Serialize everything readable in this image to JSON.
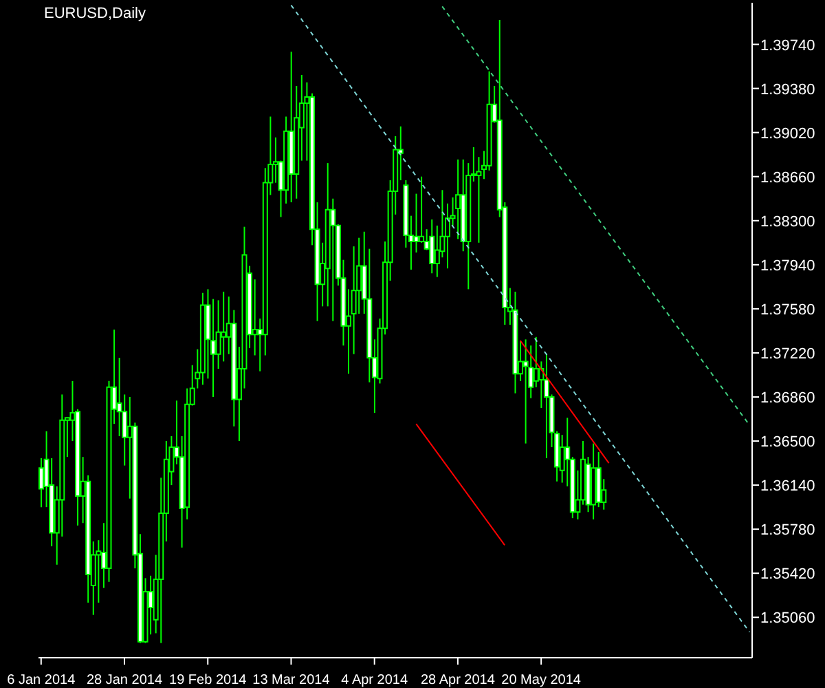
{
  "chart_data": {
    "type": "candlestick",
    "title": "EURUSD,Daily",
    "color": "#00ff00",
    "grid": false,
    "categories": [
      "6 Jan 2014",
      null,
      null,
      null,
      null,
      null,
      null,
      null,
      null,
      null,
      null,
      null,
      null,
      null,
      null,
      null,
      "28 Jan 2014",
      null,
      null,
      null,
      null,
      null,
      null,
      null,
      null,
      null,
      null,
      null,
      null,
      null,
      null,
      null,
      "19 Feb 2014",
      null,
      null,
      null,
      null,
      null,
      null,
      null,
      null,
      null,
      null,
      null,
      null,
      null,
      null,
      null,
      "13 Mar 2014",
      null,
      null,
      null,
      null,
      null,
      null,
      null,
      null,
      null,
      null,
      null,
      null,
      null,
      null,
      null,
      "4 Apr 2014",
      null,
      null,
      null,
      null,
      null,
      null,
      null,
      null,
      null,
      null,
      null,
      null,
      null,
      null,
      null,
      "28 Apr 2014",
      null,
      null,
      null,
      null,
      null,
      null,
      null,
      null,
      null,
      null,
      null,
      null,
      null,
      null,
      null,
      "20 May 2014",
      null,
      null,
      null,
      null,
      null,
      null,
      null,
      null,
      null,
      null,
      null,
      null,
      null,
      null,
      null,
      null,
      null,
      null,
      null,
      null,
      null,
      null,
      null,
      null,
      null,
      null,
      null,
      null,
      null,
      null,
      null,
      null,
      null,
      null,
      null,
      null,
      null,
      null,
      null,
      null
    ],
    "ohlc": [
      [
        1.3628,
        1.3636,
        1.3596,
        1.3611
      ],
      [
        1.3635,
        1.3658,
        1.3596,
        1.3613
      ],
      [
        1.3614,
        1.3636,
        1.3564,
        1.3575
      ],
      [
        1.3575,
        1.3613,
        1.3549,
        1.3602
      ],
      [
        1.3602,
        1.3688,
        1.3572,
        1.3667
      ],
      [
        1.3667,
        1.3669,
        1.3637,
        1.3669
      ],
      [
        1.3667,
        1.3699,
        1.365,
        1.3673
      ],
      [
        1.3674,
        1.3676,
        1.3581,
        1.3605
      ],
      [
        1.3605,
        1.3637,
        1.3583,
        1.3617
      ],
      [
        1.3617,
        1.3622,
        1.3518,
        1.3541
      ],
      [
        1.3532,
        1.3568,
        1.3508,
        1.3557
      ],
      [
        1.3557,
        1.3569,
        1.3518,
        1.356
      ],
      [
        1.3559,
        1.3583,
        1.353,
        1.3546
      ],
      [
        1.3546,
        1.3699,
        1.3535,
        1.3694
      ],
      [
        1.3694,
        1.3741,
        1.3664,
        1.3676
      ],
      [
        1.3681,
        1.3718,
        1.3654,
        1.3674
      ],
      [
        1.3674,
        1.3688,
        1.363,
        1.3653
      ],
      [
        1.3653,
        1.3686,
        1.3603,
        1.3662
      ],
      [
        1.3662,
        1.3665,
        1.3546,
        1.3557
      ],
      [
        1.3558,
        1.3574,
        1.3485,
        1.3486
      ],
      [
        1.3486,
        1.3538,
        1.3485,
        1.3527
      ],
      [
        1.3527,
        1.354,
        1.3492,
        1.3514
      ],
      [
        1.3504,
        1.3557,
        1.3493,
        1.3537
      ],
      [
        1.3537,
        1.362,
        1.3485,
        1.3591
      ],
      [
        1.3591,
        1.365,
        1.3568,
        1.3635
      ],
      [
        1.3625,
        1.3654,
        1.3614,
        1.3645
      ],
      [
        1.3645,
        1.3683,
        1.3631,
        1.3637
      ],
      [
        1.3637,
        1.3654,
        1.3563,
        1.3595
      ],
      [
        1.3596,
        1.3693,
        1.3586,
        1.368
      ],
      [
        1.368,
        1.3712,
        1.3679,
        1.3693
      ],
      [
        1.3701,
        1.3725,
        1.3693,
        1.3706
      ],
      [
        1.3706,
        1.3771,
        1.3696,
        1.3761
      ],
      [
        1.3761,
        1.3774,
        1.3701,
        1.3733
      ],
      [
        1.3732,
        1.3766,
        1.3686,
        1.3721
      ],
      [
        1.3721,
        1.3765,
        1.3709,
        1.3739
      ],
      [
        1.3735,
        1.3772,
        1.3715,
        1.3739
      ],
      [
        1.3735,
        1.3768,
        1.3721,
        1.3746
      ],
      [
        1.3746,
        1.3757,
        1.3662,
        1.3684
      ],
      [
        1.3684,
        1.3727,
        1.365,
        1.3709
      ],
      [
        1.3709,
        1.3825,
        1.3693,
        1.3802
      ],
      [
        1.3787,
        1.3793,
        1.3726,
        1.3737
      ],
      [
        1.3737,
        1.3782,
        1.372,
        1.3741
      ],
      [
        1.3741,
        1.375,
        1.3707,
        1.3737
      ],
      [
        1.3737,
        1.3873,
        1.372,
        1.3861
      ],
      [
        1.3861,
        1.3915,
        1.3851,
        1.3876
      ],
      [
        1.3876,
        1.3898,
        1.3861,
        1.3878
      ],
      [
        1.3878,
        1.3879,
        1.3833,
        1.3855
      ],
      [
        1.3855,
        1.3915,
        1.3844,
        1.3903
      ],
      [
        1.3903,
        1.3968,
        1.3845,
        1.3868
      ],
      [
        1.3868,
        1.394,
        1.3848,
        1.3914
      ],
      [
        1.3906,
        1.3949,
        1.3879,
        1.3926
      ],
      [
        1.3926,
        1.3943,
        1.3879,
        1.3931
      ],
      [
        1.3931,
        1.3934,
        1.381,
        1.3823
      ],
      [
        1.3823,
        1.3845,
        1.3748,
        1.3778
      ],
      [
        1.3778,
        1.3812,
        1.376,
        1.3795
      ],
      [
        1.3791,
        1.3877,
        1.376,
        1.3839
      ],
      [
        1.3839,
        1.3848,
        1.3748,
        1.3826
      ],
      [
        1.3826,
        1.3827,
        1.3777,
        1.3783
      ],
      [
        1.3783,
        1.3798,
        1.3728,
        1.3744
      ],
      [
        1.3744,
        1.3774,
        1.3705,
        1.3752
      ],
      [
        1.3754,
        1.3809,
        1.3721,
        1.3773
      ],
      [
        1.3773,
        1.3816,
        1.3754,
        1.3793
      ],
      [
        1.3793,
        1.3821,
        1.3754,
        1.3766
      ],
      [
        1.3766,
        1.3807,
        1.3698,
        1.3718
      ],
      [
        1.3718,
        1.3733,
        1.3673,
        1.3702
      ],
      [
        1.3701,
        1.375,
        1.3697,
        1.3742
      ],
      [
        1.3742,
        1.3813,
        1.3737,
        1.3796
      ],
      [
        1.3796,
        1.3863,
        1.3781,
        1.3854
      ],
      [
        1.3854,
        1.3899,
        1.3835,
        1.3888
      ],
      [
        1.3888,
        1.3907,
        1.3863,
        1.3885
      ],
      [
        1.3859,
        1.3863,
        1.3808,
        1.3818
      ],
      [
        1.3818,
        1.3834,
        1.379,
        1.3813
      ],
      [
        1.3817,
        1.3852,
        1.3804,
        1.3813
      ],
      [
        1.3813,
        1.3866,
        1.3812,
        1.3817
      ],
      [
        1.3813,
        1.3823,
        1.3806,
        1.3807
      ],
      [
        1.3817,
        1.3831,
        1.3787,
        1.3795
      ],
      [
        1.3795,
        1.3826,
        1.3784,
        1.3806
      ],
      [
        1.3805,
        1.3855,
        1.38,
        1.3817
      ],
      [
        1.3817,
        1.3844,
        1.3791,
        1.3832
      ],
      [
        1.3832,
        1.3849,
        1.3826,
        1.3834
      ],
      [
        1.384,
        1.388,
        1.3815,
        1.3851
      ],
      [
        1.3851,
        1.388,
        1.3805,
        1.3813
      ],
      [
        1.3813,
        1.3877,
        1.3774,
        1.3867
      ],
      [
        1.3867,
        1.389,
        1.3862,
        1.3868
      ],
      [
        1.3867,
        1.3882,
        1.3812,
        1.387
      ],
      [
        1.3872,
        1.3887,
        1.3864,
        1.3875
      ],
      [
        1.3875,
        1.3952,
        1.3871,
        1.3925
      ],
      [
        1.3925,
        1.394,
        1.391,
        1.3911
      ],
      [
        1.3912,
        1.3994,
        1.3833,
        1.3839
      ],
      [
        1.3841,
        1.3845,
        1.3745,
        1.3759
      ],
      [
        1.3756,
        1.3775,
        1.3745,
        1.3759
      ],
      [
        1.3757,
        1.3772,
        1.3689,
        1.3705
      ],
      [
        1.3705,
        1.3732,
        1.3699,
        1.3715
      ],
      [
        1.3715,
        1.3733,
        1.3648,
        1.3711
      ],
      [
        1.371,
        1.3728,
        1.3685,
        1.3694
      ],
      [
        1.3699,
        1.3735,
        1.3694,
        1.3709
      ],
      [
        1.37,
        1.3715,
        1.3677,
        1.3709
      ],
      [
        1.37,
        1.3721,
        1.3636,
        1.3686
      ],
      [
        1.3686,
        1.3688,
        1.3645,
        1.3657
      ],
      [
        1.3656,
        1.3658,
        1.3617,
        1.3629
      ],
      [
        1.3626,
        1.3655,
        1.3616,
        1.3645
      ],
      [
        1.3645,
        1.3669,
        1.3613,
        1.3635
      ],
      [
        1.3635,
        1.3637,
        1.3587,
        1.3592
      ],
      [
        1.3592,
        1.3626,
        1.3586,
        1.3602
      ],
      [
        1.3602,
        1.365,
        1.3598,
        1.3635
      ],
      [
        1.3631,
        1.3637,
        1.3592,
        1.3598
      ],
      [
        1.3598,
        1.3648,
        1.3586,
        1.3628
      ],
      [
        1.3628,
        1.3641,
        1.3596,
        1.36
      ],
      [
        1.36,
        1.3619,
        1.3594,
        1.361
      ],
      null,
      null,
      null,
      null,
      null,
      null,
      null,
      null,
      null,
      null,
      null,
      null,
      null,
      null,
      null,
      null,
      null,
      null,
      null,
      null,
      null,
      null,
      null,
      null,
      null,
      null,
      null,
      null
    ],
    "series": [
      {
        "type": "line",
        "color": "#7fd8d8",
        "line_style": "dashed",
        "values": [
          null,
          null,
          null,
          null,
          null,
          null,
          null,
          null,
          null,
          null,
          null,
          null,
          null,
          null,
          null,
          null,
          null,
          null,
          null,
          null,
          null,
          null,
          null,
          null,
          null,
          null,
          null,
          null,
          null,
          null,
          null,
          null,
          null,
          null,
          null,
          null,
          null,
          null,
          null,
          null,
          null,
          null,
          null,
          null,
          null,
          null,
          null,
          null,
          1.4006,
          null,
          null,
          null,
          null,
          null,
          null,
          null,
          null,
          null,
          null,
          null,
          null,
          null,
          null,
          null,
          null,
          null,
          null,
          null,
          null,
          null,
          null,
          null,
          null,
          null,
          null,
          null,
          null,
          null,
          null,
          null,
          null,
          null,
          null,
          null,
          null,
          null,
          null,
          null,
          null,
          null,
          null,
          null,
          null,
          null,
          null,
          null,
          null,
          null,
          null,
          null,
          null,
          null,
          null,
          null,
          null,
          null,
          null,
          null,
          null,
          null,
          null,
          null,
          null,
          null,
          null,
          null,
          null,
          null,
          null,
          null,
          null,
          null,
          null,
          null,
          null,
          null,
          null,
          null,
          null,
          null,
          null,
          null,
          null,
          null,
          null,
          null,
          1.3494
        ]
      },
      {
        "type": "line",
        "color": "#40d080",
        "line_style": "dashed",
        "values": [
          null,
          null,
          null,
          null,
          null,
          null,
          null,
          null,
          null,
          null,
          null,
          null,
          null,
          null,
          null,
          null,
          null,
          null,
          null,
          null,
          null,
          null,
          null,
          null,
          null,
          null,
          null,
          null,
          null,
          null,
          null,
          null,
          null,
          null,
          null,
          null,
          null,
          null,
          null,
          null,
          null,
          null,
          null,
          null,
          null,
          null,
          null,
          null,
          null,
          null,
          null,
          null,
          null,
          null,
          null,
          null,
          null,
          null,
          null,
          null,
          null,
          null,
          null,
          null,
          null,
          null,
          null,
          null,
          null,
          null,
          null,
          null,
          null,
          null,
          null,
          null,
          null,
          1.4005,
          null,
          null,
          null,
          null,
          null,
          null,
          null,
          null,
          null,
          null,
          null,
          null,
          null,
          null,
          null,
          null,
          null,
          null,
          null,
          null,
          null,
          null,
          null,
          null,
          null,
          null,
          null,
          null,
          null,
          null,
          null,
          null,
          null,
          null,
          null,
          null,
          null,
          null,
          null,
          null,
          null,
          null,
          null,
          null,
          null,
          null,
          null,
          null,
          null,
          null,
          null,
          null,
          null,
          null,
          null,
          null,
          null,
          null,
          1.3663
        ]
      },
      {
        "type": "line",
        "color": "#ff0000",
        "line_style": "solid",
        "values": [
          null,
          null,
          null,
          null,
          null,
          null,
          null,
          null,
          null,
          null,
          null,
          null,
          null,
          null,
          null,
          null,
          null,
          null,
          null,
          null,
          null,
          null,
          null,
          null,
          null,
          null,
          null,
          null,
          null,
          null,
          null,
          null,
          null,
          null,
          null,
          null,
          null,
          null,
          null,
          null,
          null,
          null,
          null,
          null,
          null,
          null,
          null,
          null,
          null,
          null,
          null,
          null,
          null,
          null,
          null,
          null,
          null,
          null,
          null,
          null,
          null,
          null,
          null,
          null,
          null,
          null,
          null,
          null,
          null,
          null,
          null,
          null,
          1.3664,
          null,
          null,
          null,
          null,
          null,
          null,
          null,
          null,
          null,
          null,
          null,
          null,
          null,
          null,
          null,
          null,
          1.3565,
          null,
          null,
          null,
          null,
          null,
          null,
          null,
          null,
          null,
          null,
          null,
          null,
          null,
          null,
          null,
          null,
          null,
          null,
          null,
          null,
          null,
          null,
          null,
          null,
          null,
          null,
          null,
          null,
          null,
          null,
          null,
          null,
          null,
          null,
          null,
          null,
          null,
          null,
          null,
          null,
          null,
          null,
          null,
          null,
          null,
          null,
          null
        ]
      },
      {
        "type": "line",
        "color": "#ff0000",
        "line_style": "solid",
        "values": [
          null,
          null,
          null,
          null,
          null,
          null,
          null,
          null,
          null,
          null,
          null,
          null,
          null,
          null,
          null,
          null,
          null,
          null,
          null,
          null,
          null,
          null,
          null,
          null,
          null,
          null,
          null,
          null,
          null,
          null,
          null,
          null,
          null,
          null,
          null,
          null,
          null,
          null,
          null,
          null,
          null,
          null,
          null,
          null,
          null,
          null,
          null,
          null,
          null,
          null,
          null,
          null,
          null,
          null,
          null,
          null,
          null,
          null,
          null,
          null,
          null,
          null,
          null,
          null,
          null,
          null,
          null,
          null,
          null,
          null,
          null,
          null,
          null,
          null,
          null,
          null,
          null,
          null,
          null,
          null,
          null,
          null,
          null,
          null,
          null,
          null,
          null,
          null,
          null,
          null,
          null,
          null,
          1.3732,
          null,
          null,
          null,
          null,
          null,
          null,
          null,
          null,
          null,
          null,
          null,
          null,
          null,
          null,
          null,
          null,
          1.3632,
          null,
          null,
          null,
          null,
          null,
          null,
          null,
          null,
          null,
          null,
          null,
          null,
          null,
          null,
          null,
          null,
          null,
          null,
          null,
          null,
          null,
          null,
          null,
          null,
          null,
          null,
          null
        ]
      }
    ],
    "ylim": [
      1.3473,
      1.4008
    ],
    "yticks": [
      {
        "value": 1.3974,
        "label": "1.39740"
      },
      {
        "value": 1.3938,
        "label": "1.39380"
      },
      {
        "value": 1.3902,
        "label": "1.39020"
      },
      {
        "value": 1.3866,
        "label": "1.38660"
      },
      {
        "value": 1.383,
        "label": "1.38300"
      },
      {
        "value": 1.3794,
        "label": "1.37940"
      },
      {
        "value": 1.3758,
        "label": "1.37580"
      },
      {
        "value": 1.3722,
        "label": "1.37220"
      },
      {
        "value": 1.3686,
        "label": "1.36860"
      },
      {
        "value": 1.365,
        "label": "1.36500"
      },
      {
        "value": 1.3614,
        "label": "1.36140"
      },
      {
        "value": 1.3578,
        "label": "1.35780"
      },
      {
        "value": 1.3542,
        "label": "1.35420"
      },
      {
        "value": 1.3506,
        "label": "1.35060"
      }
    ]
  }
}
